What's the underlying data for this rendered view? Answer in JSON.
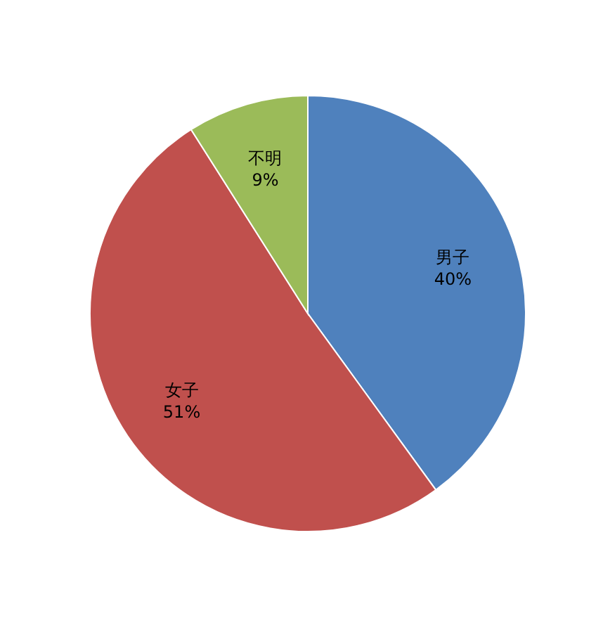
{
  "chart_data": {
    "type": "pie",
    "categories": [
      "男子",
      "女子",
      "不明"
    ],
    "values": [
      40,
      51,
      9
    ],
    "value_labels": [
      "40%",
      "51%",
      "9%"
    ],
    "colors": [
      "#4f81bd",
      "#c0504d",
      "#9bbb59"
    ]
  }
}
